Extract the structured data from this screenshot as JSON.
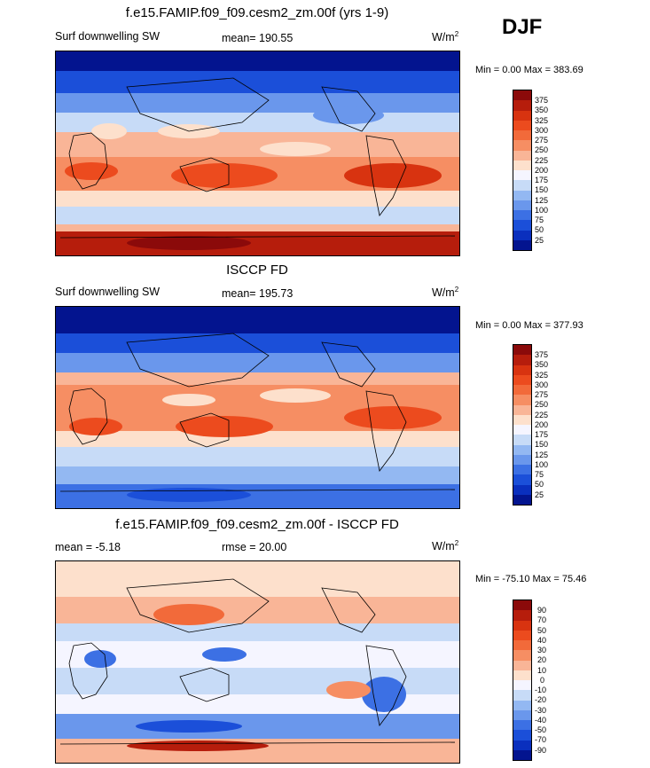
{
  "season": "DJF",
  "panels": [
    {
      "title": "f.e15.FAMIP.f09_f09.cesm2_zm.00f (yrs 1-9)",
      "left_label": "Surf downwelling SW",
      "center_label": "mean= 190.55",
      "units_base": "W/m",
      "units_sup": "2",
      "minmax": "Min =    0.00 Max = 383.69",
      "colorbar_labels": [
        "375",
        "350",
        "325",
        "300",
        "275",
        "250",
        "225",
        "200",
        "175",
        "150",
        "125",
        "100",
        "75",
        "50",
        "25"
      ],
      "colorbar_colors": [
        "#8b0a0a",
        "#b61d0c",
        "#d83310",
        "#ec4b1e",
        "#f26a3a",
        "#f68e63",
        "#f9b597",
        "#fde0cc",
        "#f5f5ff",
        "#c7dbf7",
        "#93b8f2",
        "#6a97ec",
        "#3c70e4",
        "#1b4fd9",
        "#0a2fbe",
        "#03148f"
      ]
    },
    {
      "title": "ISCCP FD",
      "left_label": "Surf downwelling SW",
      "center_label": "mean= 195.73",
      "units_base": "W/m",
      "units_sup": "2",
      "minmax": "Min =    0.00 Max = 377.93",
      "colorbar_labels": [
        "375",
        "350",
        "325",
        "300",
        "275",
        "250",
        "225",
        "200",
        "175",
        "150",
        "125",
        "100",
        "75",
        "50",
        "25"
      ],
      "colorbar_colors": [
        "#8b0a0a",
        "#b61d0c",
        "#d83310",
        "#ec4b1e",
        "#f26a3a",
        "#f68e63",
        "#f9b597",
        "#fde0cc",
        "#f5f5ff",
        "#c7dbf7",
        "#93b8f2",
        "#6a97ec",
        "#3c70e4",
        "#1b4fd9",
        "#0a2fbe",
        "#03148f"
      ]
    },
    {
      "title": "f.e15.FAMIP.f09_f09.cesm2_zm.00f - ISCCP FD",
      "left_label": "mean =  -5.18",
      "center_label": "rmse =  20.00",
      "units_base": "W/m",
      "units_sup": "2",
      "minmax": "Min = -75.10 Max =  75.46",
      "colorbar_labels": [
        "90",
        "70",
        "50",
        "40",
        "30",
        "20",
        "10",
        "0",
        "-10",
        "-20",
        "-30",
        "-40",
        "-50",
        "-70",
        "-90"
      ],
      "colorbar_colors": [
        "#8b0a0a",
        "#b61d0c",
        "#d83310",
        "#ec4b1e",
        "#f26a3a",
        "#f68e63",
        "#f9b597",
        "#fde0cc",
        "#f5f5ff",
        "#c7dbf7",
        "#93b8f2",
        "#6a97ec",
        "#3c70e4",
        "#1b4fd9",
        "#0a2fbe",
        "#03148f"
      ]
    }
  ]
}
